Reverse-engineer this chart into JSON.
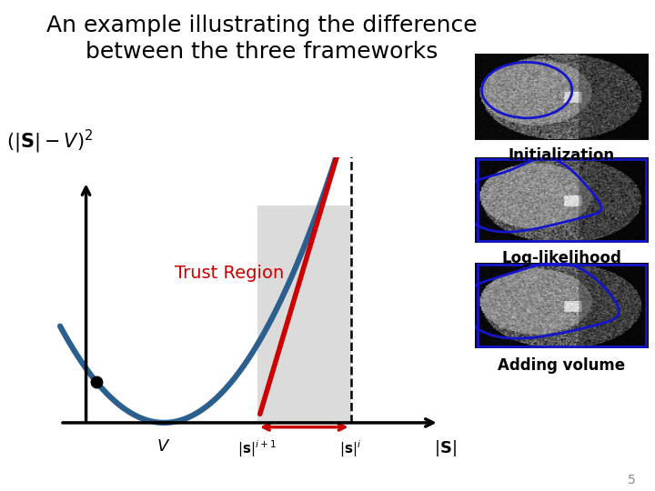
{
  "title_line1": "An example illustrating the difference",
  "title_line2": "between the three frameworks",
  "title_fontsize": 18,
  "background_color": "#ffffff",
  "curve_color": "#2b5f8e",
  "curve_linewidth": 4.5,
  "tangent_color": "#cc0000",
  "tangent_linewidth": 4,
  "trust_region_color": "#d3d3d3",
  "trust_region_alpha": 0.8,
  "arrow_color": "#cc0000",
  "trust_region_label_color": "#cc0000",
  "trust_region_label": "Trust Region",
  "trust_region_label_fontsize": 14,
  "ylabel_math": "$(|\\mathbf{S}| - V)^2$",
  "xlabel_math": "$|\\mathbf{S}|$",
  "tick_V": "$V$",
  "tick_si1": "$|\\mathbf{s}|^{i+1}$",
  "tick_si": "$|\\mathbf{s}|^{i}$",
  "label_texts": [
    "Initialization",
    "Log-likelihood",
    "Adding volume"
  ],
  "label_fontsize": 12,
  "slide_number": "5",
  "slide_number_fontsize": 10,
  "slide_number_color": "#888888",
  "x_min": 0.0,
  "x_s_i1": 1.8,
  "x_s_i": 3.6,
  "x_left_dot": -1.3,
  "x_range_start": -2.0,
  "x_range_end": 5.2,
  "y_rect_top": 9.0,
  "xlim": [
    -2.4,
    5.8
  ],
  "ylim": [
    -1.2,
    11.0
  ]
}
